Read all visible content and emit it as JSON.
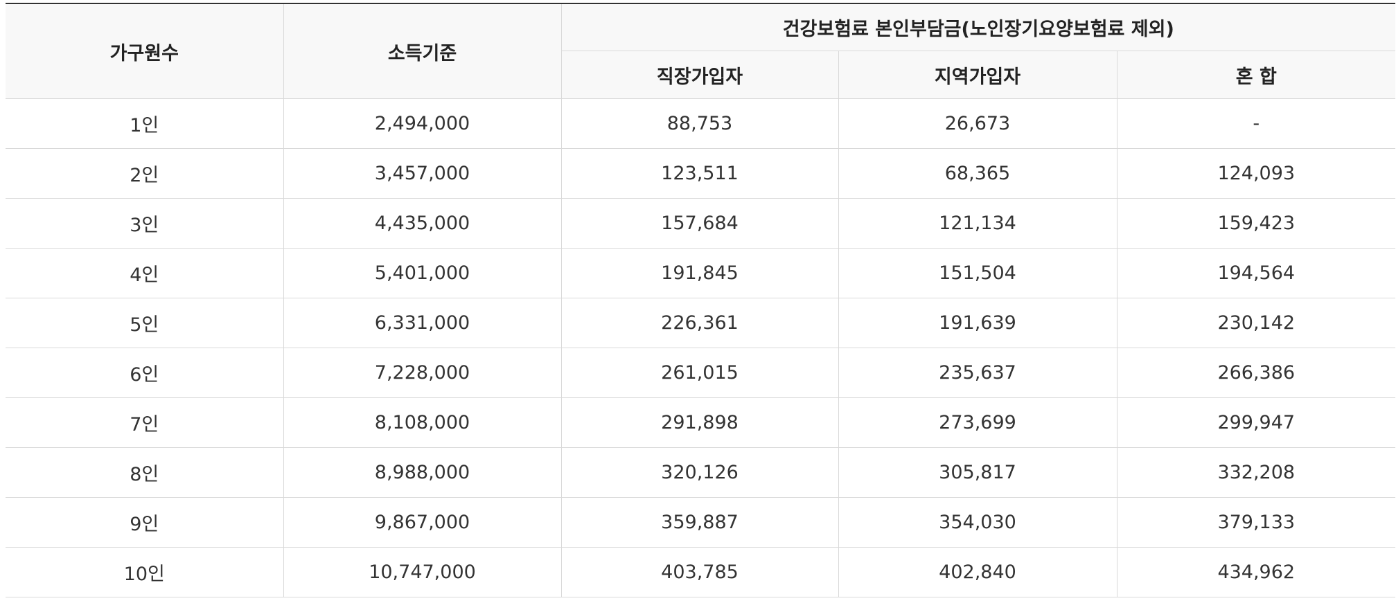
{
  "table": {
    "headers": {
      "household": "가구원수",
      "income": "소득기준",
      "premium_group": "건강보험료 본인부담금(노인장기요양보험료 제외)",
      "workplace": "직장가입자",
      "regional": "지역가입자",
      "mixed": "혼 합"
    },
    "rows": [
      {
        "household": "1인",
        "income": "2,494,000",
        "workplace": "88,753",
        "regional": "26,673",
        "mixed": "-"
      },
      {
        "household": "2인",
        "income": "3,457,000",
        "workplace": "123,511",
        "regional": "68,365",
        "mixed": "124,093"
      },
      {
        "household": "3인",
        "income": "4,435,000",
        "workplace": "157,684",
        "regional": "121,134",
        "mixed": "159,423"
      },
      {
        "household": "4인",
        "income": "5,401,000",
        "workplace": "191,845",
        "regional": "151,504",
        "mixed": "194,564"
      },
      {
        "household": "5인",
        "income": "6,331,000",
        "workplace": "226,361",
        "regional": "191,639",
        "mixed": "230,142"
      },
      {
        "household": "6인",
        "income": "7,228,000",
        "workplace": "261,015",
        "regional": "235,637",
        "mixed": "266,386"
      },
      {
        "household": "7인",
        "income": "8,108,000",
        "workplace": "291,898",
        "regional": "273,699",
        "mixed": "299,947"
      },
      {
        "household": "8인",
        "income": "8,988,000",
        "workplace": "320,126",
        "regional": "305,817",
        "mixed": "332,208"
      },
      {
        "household": "9인",
        "income": "9,867,000",
        "workplace": "359,887",
        "regional": "354,030",
        "mixed": "379,133"
      },
      {
        "household": "10인",
        "income": "10,747,000",
        "workplace": "403,785",
        "regional": "402,840",
        "mixed": "434,962"
      }
    ]
  }
}
